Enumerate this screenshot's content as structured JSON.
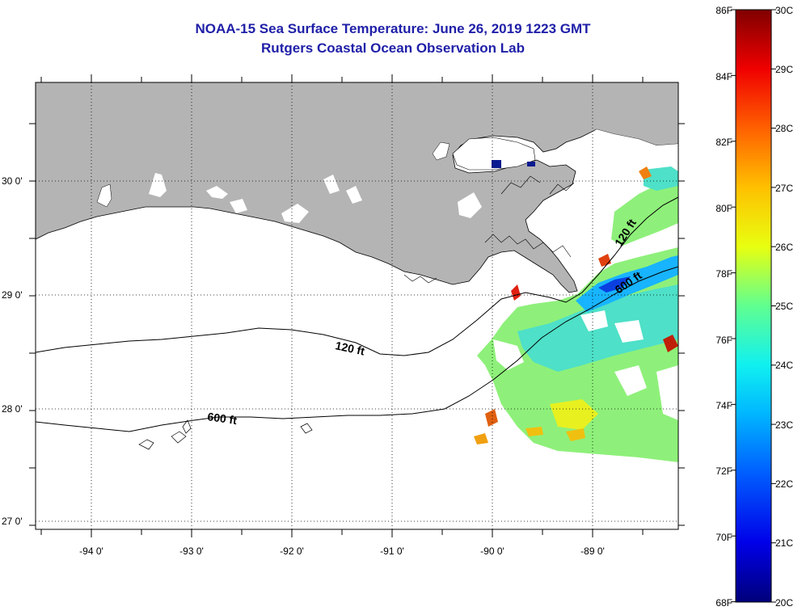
{
  "title": "NOAA-15 Sea Surface Temperature:  June 26, 2019 1223 GMT",
  "subtitle": "Rutgers Coastal Ocean Observation Lab",
  "lon_labels": [
    "-94 0'",
    "-93 0'",
    "-92 0'",
    "-91 0'",
    "-90 0'",
    "-89 0'"
  ],
  "lat_labels": [
    "30 0'",
    "29 0'",
    "28 0'",
    "27 0'"
  ],
  "contours": {
    "shallow": "120 ft",
    "deep": "600 ft"
  },
  "colorbar": {
    "f_labels": [
      "86F",
      "84F",
      "82F",
      "80F",
      "78F",
      "76F",
      "74F",
      "72F",
      "70F",
      "68F"
    ],
    "c_labels": [
      "30C",
      "29C",
      "28C",
      "27C",
      "26C",
      "25C",
      "24C",
      "23C",
      "22C",
      "21C",
      "20C"
    ]
  },
  "colors": {
    "land": "#b4b4b4",
    "title": "#1f1fa8",
    "cold": "#00008c",
    "hot": "#8c0000"
  }
}
